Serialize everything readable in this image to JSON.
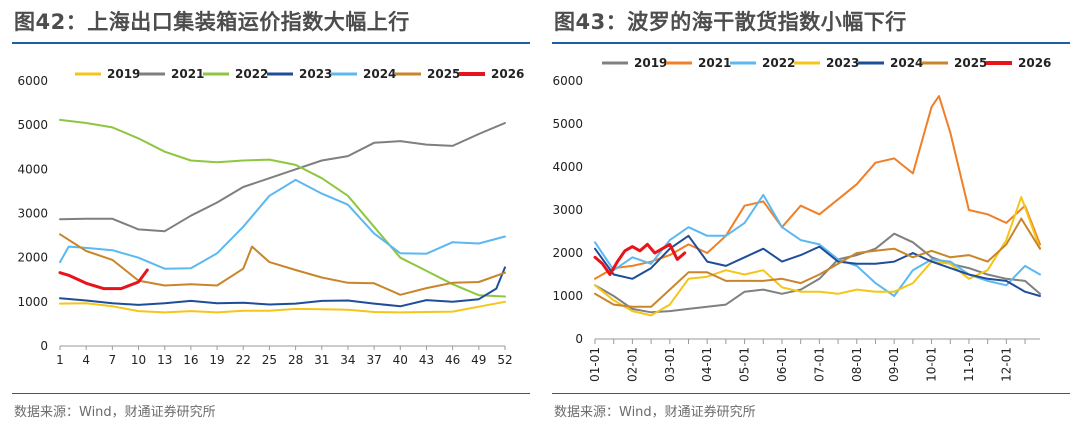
{
  "chart_data": [
    {
      "type": "line",
      "title": "图42：上海出口集装箱运价指数大幅上行",
      "source": "数据来源：Wind，财通证券研究所",
      "ylim": [
        0,
        6000
      ],
      "yticks": [
        0,
        1000,
        2000,
        3000,
        4000,
        5000,
        6000
      ],
      "xlim": [
        1,
        52
      ],
      "xticks": [
        1,
        4,
        7,
        10,
        13,
        16,
        19,
        22,
        25,
        28,
        31,
        34,
        37,
        40,
        43,
        46,
        49,
        52
      ],
      "legend_position": "top",
      "series": [
        {
          "name": "2019",
          "color": "#f5c518",
          "width": 2,
          "x": [
            1,
            4,
            7,
            10,
            13,
            16,
            19,
            22,
            25,
            28,
            31,
            34,
            37,
            40,
            43,
            46,
            49,
            52
          ],
          "values": [
            960,
            970,
            900,
            790,
            760,
            790,
            760,
            800,
            800,
            840,
            830,
            820,
            770,
            760,
            770,
            780,
            890,
            1000
          ]
        },
        {
          "name": "2021",
          "color": "#7f7f7f",
          "width": 2,
          "x": [
            1,
            4,
            7,
            10,
            13,
            16,
            19,
            22,
            25,
            28,
            31,
            34,
            37,
            40,
            43,
            46,
            49,
            52
          ],
          "values": [
            2870,
            2880,
            2880,
            2640,
            2600,
            2950,
            3250,
            3600,
            3800,
            4000,
            4200,
            4300,
            4600,
            4640,
            4560,
            4530,
            4800,
            5050
          ]
        },
        {
          "name": "2022",
          "color": "#8ec63f",
          "width": 2,
          "x": [
            1,
            4,
            7,
            10,
            13,
            16,
            19,
            22,
            25,
            28,
            31,
            34,
            37,
            40,
            43,
            46,
            49,
            52
          ],
          "values": [
            5120,
            5050,
            4950,
            4700,
            4400,
            4200,
            4160,
            4200,
            4220,
            4100,
            3800,
            3400,
            2700,
            2000,
            1700,
            1400,
            1150,
            1120
          ]
        },
        {
          "name": "2023",
          "color": "#1f4e99",
          "width": 2,
          "x": [
            1,
            4,
            7,
            10,
            13,
            16,
            19,
            22,
            25,
            28,
            31,
            34,
            37,
            40,
            43,
            46,
            49,
            51,
            52
          ],
          "values": [
            1080,
            1030,
            970,
            930,
            970,
            1020,
            970,
            980,
            940,
            960,
            1020,
            1030,
            960,
            900,
            1040,
            1000,
            1060,
            1300,
            1780
          ]
        },
        {
          "name": "2024",
          "color": "#5bb8f0",
          "width": 2,
          "x": [
            1,
            2,
            4,
            7,
            10,
            13,
            16,
            19,
            22,
            25,
            28,
            31,
            34,
            37,
            40,
            43,
            46,
            49,
            52
          ],
          "values": [
            1900,
            2250,
            2220,
            2170,
            2000,
            1750,
            1760,
            2100,
            2700,
            3400,
            3760,
            3450,
            3200,
            2550,
            2100,
            2090,
            2350,
            2320,
            2480
          ]
        },
        {
          "name": "2025",
          "color": "#c9852a",
          "width": 2,
          "x": [
            1,
            4,
            7,
            10,
            13,
            16,
            19,
            22,
            23,
            25,
            28,
            31,
            34,
            37,
            40,
            43,
            46,
            49,
            52
          ],
          "values": [
            2530,
            2150,
            1950,
            1480,
            1370,
            1400,
            1370,
            1750,
            2250,
            1900,
            1720,
            1550,
            1430,
            1420,
            1160,
            1310,
            1430,
            1450,
            1660
          ]
        },
        {
          "name": "2026",
          "color": "#e8131b",
          "width": 3,
          "x": [
            1,
            2,
            4,
            6,
            8,
            10,
            11
          ],
          "values": [
            1660,
            1600,
            1420,
            1300,
            1300,
            1450,
            1720
          ]
        }
      ]
    },
    {
      "type": "line",
      "title": "图43：波罗的海干散货指数小幅下行",
      "source": "数据来源：Wind，财通证券研究所",
      "ylim": [
        0,
        6000
      ],
      "yticks": [
        0,
        1000,
        2000,
        3000,
        4000,
        5000,
        6000
      ],
      "xlim": [
        1,
        12.9
      ],
      "xticks": [
        "01-01",
        "01-16",
        "02-01",
        "02-16",
        "03-01",
        "03-16",
        "04-01",
        "04-16",
        "05-01",
        "05-16",
        "06-01",
        "06-16",
        "07-01",
        "07-16",
        "08-01",
        "08-16",
        "09-01",
        "09-16",
        "10-01",
        "10-16",
        "11-01",
        "11-16",
        "12-01",
        "12-16"
      ],
      "xtick_labels": [
        "01-01",
        "02-01",
        "03-01",
        "04-01",
        "05-01",
        "06-01",
        "07-01",
        "08-01",
        "09-01",
        "10-01",
        "11-01",
        "12-01"
      ],
      "legend_position": "top",
      "series": [
        {
          "name": "2019",
          "color": "#808080",
          "width": 2,
          "x": [
            1,
            1.5,
            2,
            2.5,
            3,
            3.5,
            4,
            4.5,
            5,
            5.5,
            6,
            6.5,
            7,
            7.5,
            8,
            8.5,
            9,
            9.5,
            10,
            10.5,
            11,
            11.5,
            12,
            12.5,
            12.9
          ],
          "values": [
            1250,
            1000,
            700,
            620,
            650,
            700,
            750,
            800,
            1100,
            1150,
            1050,
            1150,
            1400,
            1850,
            1950,
            2100,
            2450,
            2250,
            1900,
            1750,
            1650,
            1500,
            1400,
            1350,
            1050
          ]
        },
        {
          "name": "2021",
          "color": "#f07f27",
          "width": 2,
          "x": [
            1,
            1.5,
            2,
            2.5,
            3,
            3.5,
            4,
            4.5,
            5,
            5.5,
            6,
            6.5,
            7,
            7.5,
            8,
            8.5,
            9,
            9.5,
            10,
            10.2,
            10.5,
            11,
            11.5,
            12,
            12.5,
            12.9
          ],
          "values": [
            1400,
            1650,
            1700,
            1800,
            1950,
            2200,
            2000,
            2400,
            3100,
            3200,
            2600,
            3100,
            2900,
            3250,
            3600,
            4100,
            4200,
            3850,
            5400,
            5650,
            4800,
            3000,
            2900,
            2700,
            3100,
            2200
          ]
        },
        {
          "name": "2022",
          "color": "#5bb8f0",
          "width": 2,
          "x": [
            1,
            1.5,
            2,
            2.5,
            3,
            3.5,
            4,
            4.5,
            5,
            5.5,
            6,
            6.5,
            7,
            7.5,
            8,
            8.5,
            9,
            9.5,
            10,
            10.5,
            11,
            11.5,
            12,
            12.5,
            12.9
          ],
          "values": [
            2250,
            1600,
            1900,
            1750,
            2300,
            2600,
            2400,
            2400,
            2700,
            3350,
            2600,
            2300,
            2200,
            1850,
            1700,
            1300,
            1000,
            1600,
            1850,
            1800,
            1500,
            1350,
            1250,
            1700,
            1500
          ]
        },
        {
          "name": "2023",
          "color": "#f5c518",
          "width": 2,
          "x": [
            1,
            1.5,
            2,
            2.5,
            3,
            3.5,
            4,
            4.5,
            5,
            5.5,
            6,
            6.5,
            7,
            7.5,
            8,
            8.5,
            9,
            9.5,
            10,
            10.5,
            11,
            11.5,
            12,
            12.4,
            12.9
          ],
          "values": [
            1250,
            900,
            650,
            550,
            800,
            1400,
            1450,
            1600,
            1500,
            1600,
            1200,
            1100,
            1100,
            1050,
            1150,
            1100,
            1100,
            1300,
            1800,
            1750,
            1400,
            1600,
            2300,
            3300,
            2100
          ]
        },
        {
          "name": "2024",
          "color": "#1f4e99",
          "width": 2,
          "x": [
            1,
            1.5,
            2,
            2.5,
            3,
            3.5,
            4,
            4.5,
            5,
            5.5,
            6,
            6.5,
            7,
            7.5,
            8,
            8.5,
            9,
            9.5,
            10,
            10.5,
            11,
            11.5,
            12,
            12.5,
            12.9
          ],
          "values": [
            2100,
            1500,
            1400,
            1650,
            2100,
            2400,
            1800,
            1700,
            1900,
            2100,
            1800,
            1950,
            2150,
            1800,
            1750,
            1750,
            1800,
            2000,
            1800,
            1650,
            1500,
            1400,
            1350,
            1100,
            1000
          ]
        },
        {
          "name": "2025",
          "color": "#c9852a",
          "width": 2,
          "x": [
            1,
            1.5,
            2,
            2.5,
            3,
            3.5,
            4,
            4.5,
            5,
            5.5,
            6,
            6.5,
            7,
            7.5,
            8,
            8.5,
            9,
            9.5,
            10,
            10.5,
            11,
            11.5,
            12,
            12.4,
            12.9
          ],
          "values": [
            1050,
            800,
            750,
            750,
            1150,
            1550,
            1550,
            1350,
            1350,
            1350,
            1400,
            1300,
            1500,
            1750,
            2000,
            2050,
            2100,
            1900,
            2050,
            1900,
            1950,
            1800,
            2200,
            2800,
            2100
          ]
        },
        {
          "name": "2026",
          "color": "#e8131b",
          "width": 3,
          "x": [
            1,
            1.2,
            1.4,
            1.6,
            1.8,
            2,
            2.2,
            2.4,
            2.6,
            2.8,
            3,
            3.2,
            3.4
          ],
          "values": [
            1900,
            1750,
            1500,
            1800,
            2050,
            2150,
            2050,
            2200,
            2000,
            2100,
            2200,
            1850,
            2000
          ]
        }
      ]
    }
  ]
}
